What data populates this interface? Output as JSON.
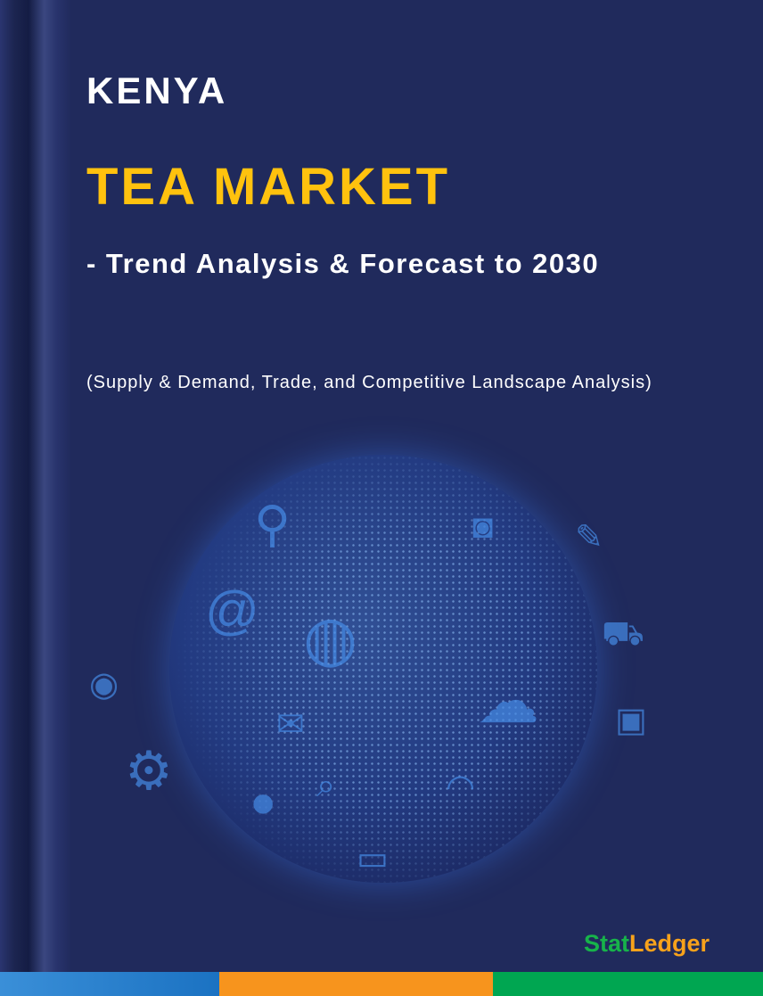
{
  "cover": {
    "country": "KENYA",
    "market": "TEA MARKET",
    "tagline": "- Trend Analysis & Forecast to 2030",
    "subtitle": "(Supply & Demand, Trade, and Competitive Landscape Analysis)"
  },
  "brand": {
    "part1": "Stat",
    "part2": "Ledger",
    "color1": "#17b34a",
    "color2": "#f7a21b"
  },
  "colors": {
    "background": "#202a5c",
    "title_accent": "#ffc20e",
    "bar_blue": "#1b72c2",
    "bar_orange": "#f7941d",
    "bar_green": "#00a651"
  },
  "illustration": {
    "icons": [
      "location-pin-icon",
      "camera-icon",
      "at-sign-icon",
      "globe-icon",
      "cloud-icon",
      "eye-icon",
      "shopping-cart-icon",
      "user-icon",
      "gear-icon",
      "mail-icon",
      "search-icon",
      "wifi-icon",
      "chat-icon",
      "wrench-icon",
      "lock-icon"
    ]
  }
}
